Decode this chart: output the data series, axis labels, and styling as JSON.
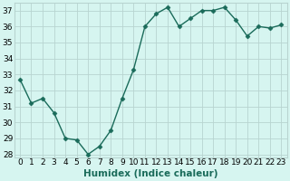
{
  "x": [
    0,
    1,
    2,
    3,
    4,
    5,
    6,
    7,
    8,
    9,
    10,
    11,
    12,
    13,
    14,
    15,
    16,
    17,
    18,
    19,
    20,
    21,
    22,
    23
  ],
  "y": [
    32.7,
    31.2,
    31.5,
    30.6,
    29.0,
    28.9,
    28.0,
    28.5,
    29.5,
    31.5,
    33.3,
    36.0,
    36.8,
    37.2,
    36.0,
    36.5,
    37.0,
    37.0,
    37.2,
    36.4,
    35.4,
    36.0,
    35.9,
    36.1
  ],
  "line_color": "#1a6b5a",
  "marker": "D",
  "markersize": 2.5,
  "linewidth": 1.0,
  "bg_color": "#d6f5f0",
  "grid_color": "#b8d4d0",
  "xlabel": "Humidex (Indice chaleur)",
  "xlim": [
    -0.5,
    23.5
  ],
  "ylim": [
    27.8,
    37.5
  ],
  "xtick_positions": [
    0,
    1,
    2,
    3,
    4,
    5,
    6,
    7,
    8,
    9,
    10,
    11,
    12,
    13,
    14,
    15,
    16,
    17,
    18,
    19,
    20,
    21,
    22,
    23
  ],
  "xtick_labels": [
    "0",
    "1",
    "2",
    "3",
    "4",
    "5",
    "6",
    "7",
    "8",
    "9",
    "10",
    "11",
    "12",
    "13",
    "14",
    "15",
    "16",
    "17",
    "18",
    "19",
    "20",
    "21",
    "22",
    "23"
  ],
  "ytick_values": [
    28,
    29,
    30,
    31,
    32,
    33,
    34,
    35,
    36,
    37
  ],
  "xlabel_fontsize": 7.5,
  "tick_fontsize": 6.5
}
